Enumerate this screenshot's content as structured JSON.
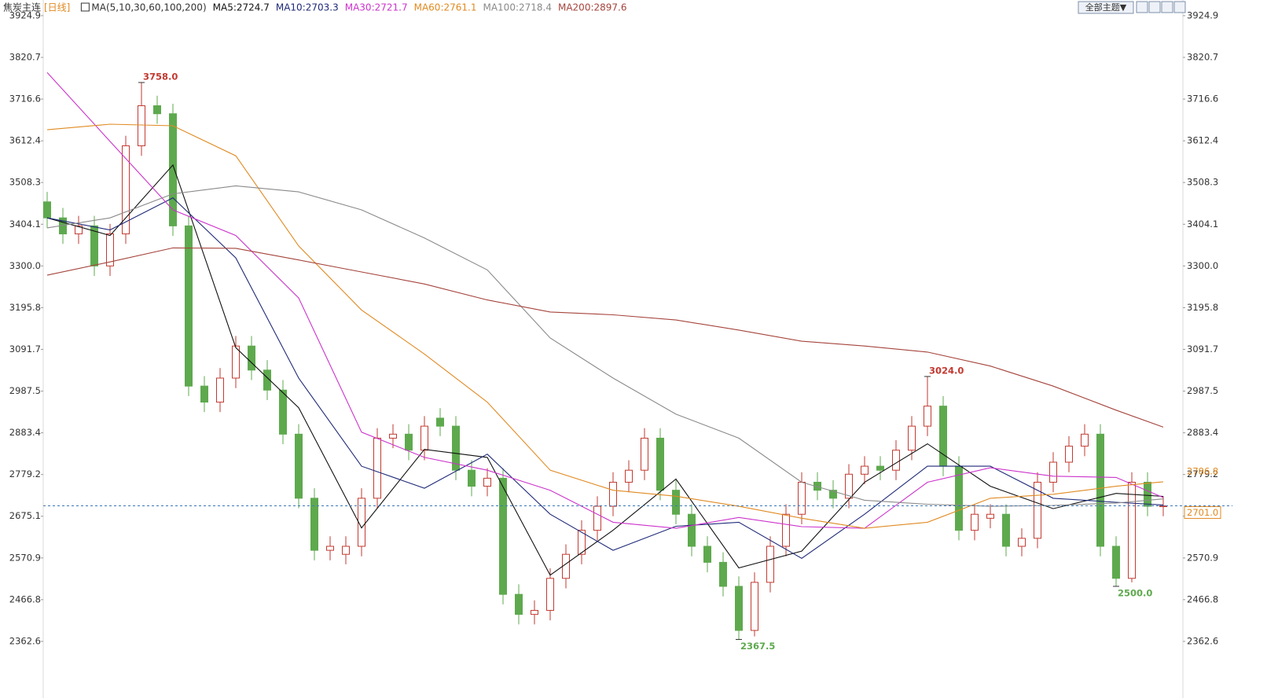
{
  "chart_data": {
    "type": "candlestick",
    "title": "焦炭主连",
    "period": "[日线]",
    "indicator": "MA(5,10,30,60,100,200)",
    "theme_button": "全部主题▼",
    "up_color": "#c23a32",
    "down_color": "#5ea94e",
    "ylim": [
      2286,
      3964
    ],
    "xlim": [
      -0.25,
      72.25
    ],
    "yticks": [
      3924.9,
      3820.7,
      3716.6,
      3612.4,
      3508.3,
      3404.1,
      {
        "value": 3300,
        "label": "3300.0"
      },
      3195.8,
      3091.7,
      2987.5,
      2883.4,
      2779.2,
      2675.1,
      2570.9,
      2466.8,
      2362.6
    ],
    "open": [
      3460,
      3420,
      3380,
      3400,
      3300,
      3380,
      3600,
      3700,
      3680,
      3400,
      3000,
      2960,
      3020,
      3100,
      3040,
      2990,
      2880,
      2720,
      2590,
      2580,
      2600,
      2720,
      2870,
      2880,
      2840,
      2920,
      2900,
      2790,
      2750,
      2770,
      2480,
      2430,
      2440,
      2520,
      2580,
      2640,
      2700,
      2760,
      2790,
      2870,
      2740,
      2680,
      2600,
      2560,
      2500,
      2390,
      2510,
      2600,
      2680,
      2760,
      2740,
      2720,
      2780,
      2800,
      2790,
      2840,
      2900,
      2950,
      2800,
      2640,
      2670,
      2680,
      2600,
      2620,
      2760,
      2810,
      2850,
      2880,
      2600,
      2520,
      2760,
      2700
    ],
    "high": [
      3485,
      3445,
      3425,
      3425,
      3405,
      3625,
      3758,
      3725,
      3705,
      3425,
      3025,
      3045,
      3125,
      3125,
      3065,
      3015,
      2905,
      2745,
      2625,
      2625,
      2745,
      2895,
      2905,
      2905,
      2925,
      2945,
      2925,
      2815,
      2795,
      2795,
      2505,
      2465,
      2545,
      2605,
      2665,
      2725,
      2785,
      2815,
      2895,
      2895,
      2765,
      2705,
      2625,
      2585,
      2525,
      2535,
      2625,
      2705,
      2785,
      2785,
      2765,
      2805,
      2825,
      2825,
      2865,
      2925,
      3024,
      2975,
      2825,
      2705,
      2705,
      2705,
      2645,
      2785,
      2835,
      2875,
      2905,
      2905,
      2625,
      2785,
      2785,
      2725
    ],
    "low": [
      3395,
      3355,
      3355,
      3275,
      3275,
      3355,
      3575,
      3655,
      3375,
      2975,
      2935,
      2935,
      2995,
      3015,
      2965,
      2855,
      2695,
      2565,
      2565,
      2555,
      2575,
      2695,
      2845,
      2815,
      2815,
      2875,
      2765,
      2725,
      2725,
      2455,
      2405,
      2405,
      2415,
      2495,
      2555,
      2615,
      2675,
      2735,
      2765,
      2715,
      2655,
      2575,
      2535,
      2475,
      2367.5,
      2375,
      2485,
      2575,
      2655,
      2715,
      2695,
      2695,
      2755,
      2765,
      2765,
      2815,
      2875,
      2775,
      2615,
      2615,
      2645,
      2575,
      2575,
      2595,
      2735,
      2785,
      2825,
      2575,
      2500,
      2510,
      2675,
      2675
    ],
    "close": [
      3420,
      3380,
      3400,
      3300,
      3380,
      3600,
      3700,
      3680,
      3400,
      3000,
      2960,
      3020,
      3100,
      3040,
      2990,
      2880,
      2720,
      2590,
      2600,
      2600,
      2720,
      2870,
      2880,
      2840,
      2900,
      2900,
      2790,
      2750,
      2770,
      2480,
      2430,
      2440,
      2520,
      2580,
      2640,
      2700,
      2760,
      2790,
      2870,
      2740,
      2680,
      2600,
      2560,
      2500,
      2390,
      2510,
      2600,
      2680,
      2760,
      2740,
      2720,
      2780,
      2800,
      2790,
      2840,
      2900,
      2950,
      2800,
      2640,
      2680,
      2680,
      2600,
      2620,
      2760,
      2810,
      2850,
      2880,
      2600,
      2520,
      2760,
      2700,
      2701
    ],
    "ma_x": [
      0,
      4,
      8,
      12,
      16,
      20,
      24,
      28,
      32,
      36,
      40,
      44,
      48,
      52,
      56,
      60,
      64,
      68,
      71
    ],
    "series": [
      {
        "label": "MA5:2724.7",
        "color": "#111111",
        "values": [
          3420,
          3376,
          3552,
          3096,
          2946,
          2646,
          2842,
          2822,
          2528,
          2640,
          2768,
          2546,
          2588,
          2760,
          2856,
          2750,
          2694,
          2732,
          2724.7
        ]
      },
      {
        "label": "MA10:2703.3",
        "color": "#1f2a78",
        "values": [
          3420,
          3390,
          3470,
          3320,
          3020,
          2800,
          2745,
          2830,
          2680,
          2590,
          2650,
          2660,
          2570,
          2680,
          2800,
          2800,
          2720,
          2710,
          2703.3
        ]
      },
      {
        "label": "MA30:2721.7",
        "color": "#cc33cc",
        "values": [
          3783,
          3611,
          3440,
          3376,
          3220,
          2885,
          2822,
          2790,
          2740,
          2660,
          2645,
          2672,
          2649,
          2645,
          2760,
          2796,
          2775,
          2772,
          2721.7
        ]
      },
      {
        "label": "MA60:2761.1",
        "color": "#e08a22",
        "values": [
          3640,
          3654,
          3650,
          3575,
          3350,
          3190,
          3080,
          2960,
          2790,
          2740,
          2725,
          2700,
          2670,
          2645,
          2660,
          2720,
          2730,
          2750,
          2761.1
        ]
      },
      {
        "label": "MA100:2718.4",
        "color": "#8a8a8a",
        "values": [
          3395,
          3420,
          3480,
          3500,
          3485,
          3440,
          3370,
          3290,
          3120,
          3020,
          2930,
          2870,
          2760,
          2715,
          2705,
          2700,
          2702,
          2708,
          2718.4
        ]
      },
      {
        "label": "MA200:2897.6",
        "color": "#a5443c",
        "values": [
          3277,
          3310,
          3345,
          3344,
          3315,
          3285,
          3255,
          3215,
          3185,
          3178,
          3165,
          3140,
          3112,
          3100,
          3085,
          3050,
          3000,
          2940,
          2897.6
        ]
      }
    ],
    "annotations": [
      {
        "candle": 6,
        "value": 3758,
        "label": "3758.0",
        "kind": "high"
      },
      {
        "candle": 56,
        "value": 3024,
        "label": "3024.0",
        "kind": "high"
      },
      {
        "candle": 44,
        "value": 2367.5,
        "label": "2367.5",
        "kind": "low"
      },
      {
        "candle": 68,
        "value": 2500,
        "label": "2500.0",
        "kind": "low"
      }
    ],
    "ma_tag": 2786.8,
    "last_price": {
      "value": 2701,
      "label": "2701.0"
    }
  }
}
